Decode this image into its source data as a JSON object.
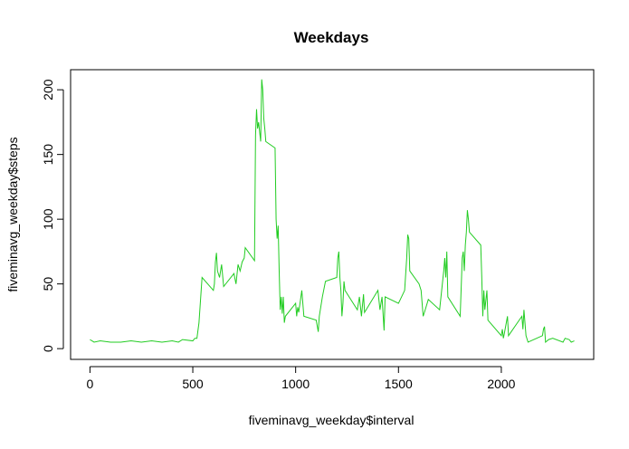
{
  "chart_data": {
    "type": "line",
    "title": "Weekdays",
    "xlabel": "fiveminavg_weekday$interval",
    "ylabel": "fiveminavg_weekday$steps",
    "color": "#22cc22",
    "xlim": [
      -94.2,
      2449.2
    ],
    "xticks": [
      0,
      500,
      1000,
      1500,
      2000
    ],
    "ylim": [
      -8.3,
      215.5
    ],
    "yticks": [
      0,
      50,
      100,
      150,
      200
    ],
    "x": [
      0,
      20,
      50,
      100,
      150,
      200,
      250,
      300,
      350,
      400,
      430,
      450,
      500,
      510,
      520,
      530,
      545,
      600,
      605,
      610,
      615,
      620,
      630,
      640,
      650,
      700,
      710,
      720,
      730,
      740,
      750,
      755,
      800,
      805,
      810,
      815,
      820,
      830,
      835,
      840,
      845,
      850,
      855,
      900,
      905,
      910,
      915,
      920,
      925,
      930,
      935,
      940,
      945,
      950,
      1000,
      1005,
      1010,
      1015,
      1030,
      1040,
      1100,
      1110,
      1115,
      1130,
      1145,
      1200,
      1205,
      1210,
      1215,
      1220,
      1225,
      1230,
      1235,
      1240,
      1300,
      1310,
      1320,
      1330,
      1335,
      1400,
      1410,
      1420,
      1430,
      1435,
      1500,
      1530,
      1540,
      1545,
      1550,
      1555,
      1600,
      1610,
      1620,
      1630,
      1645,
      1700,
      1720,
      1725,
      1730,
      1735,
      1740,
      1800,
      1810,
      1815,
      1820,
      1825,
      1830,
      1835,
      1840,
      1845,
      1900,
      1905,
      1910,
      1915,
      1920,
      1930,
      1935,
      2000,
      2005,
      2010,
      2015,
      2030,
      2035,
      2100,
      2105,
      2110,
      2115,
      2120,
      2130,
      2200,
      2205,
      2210,
      2215,
      2230,
      2250,
      2300,
      2310,
      2330,
      2340,
      2355
    ],
    "values": [
      7,
      5,
      6,
      5,
      5,
      6,
      5,
      6,
      5,
      6,
      5,
      7,
      6,
      8,
      8,
      20,
      55,
      45,
      50,
      67,
      74,
      60,
      55,
      65,
      48,
      58,
      50,
      65,
      60,
      67,
      70,
      78,
      68,
      165,
      185,
      170,
      175,
      160,
      208,
      200,
      178,
      170,
      160,
      155,
      100,
      85,
      95,
      60,
      30,
      40,
      27,
      40,
      20,
      25,
      35,
      25,
      32,
      28,
      45,
      25,
      22,
      13,
      25,
      40,
      52,
      55,
      70,
      75,
      55,
      45,
      25,
      35,
      52,
      45,
      30,
      40,
      25,
      42,
      28,
      45,
      30,
      40,
      14,
      40,
      35,
      45,
      70,
      88,
      85,
      60,
      50,
      45,
      25,
      30,
      38,
      30,
      60,
      70,
      55,
      75,
      40,
      25,
      70,
      75,
      60,
      80,
      90,
      107,
      100,
      90,
      80,
      55,
      25,
      45,
      30,
      45,
      22,
      10,
      15,
      8,
      12,
      25,
      10,
      25,
      15,
      30,
      20,
      10,
      5,
      10,
      15,
      17,
      5,
      7,
      8,
      5,
      8,
      7,
      5,
      6
    ]
  }
}
